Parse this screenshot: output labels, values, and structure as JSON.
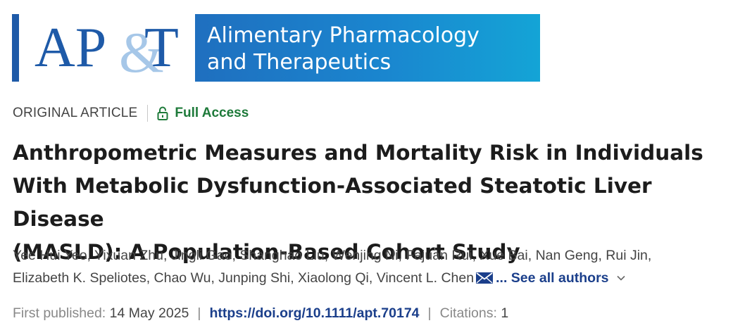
{
  "journal": {
    "abbr_left": "AP",
    "abbr_amp": "&",
    "abbr_right": "T",
    "name_line1": "Alimentary Pharmacology",
    "name_line2": "and Therapeutics",
    "colors": {
      "brand_blue": "#1e5aa8",
      "banner_gradient_start": "#1f6fbf",
      "banner_gradient_end": "#14a4d6",
      "amp_light_blue": "#9dc2e6"
    }
  },
  "meta": {
    "article_type": "ORIGINAL ARTICLE",
    "access_label": "Full Access",
    "access_icon": "lock-open-icon",
    "access_color": "#1e7a3a"
  },
  "title": {
    "line1": "Anthropometric Measures and Mortality Risk in Individuals",
    "line2": "With Metabolic Dysfunction-Associated Steatotic Liver Disease",
    "line3": "(MASLD): A Population-Based Cohort Study"
  },
  "authors": {
    "line1": "Yee Hui Yeo, Yixuan Zhu, Jingli Gao, Shanghao Liu, Wenjing Ni, Fajuan Rui, Xue Bai, Nan Geng, Rui Jin,",
    "line2": "Elizabeth K. Speliotes, Chao Wu, Junping Shi, Xiaolong Qi, Vincent L. Chen",
    "corresponding_icon": "envelope-icon",
    "see_all_label": "... See all authors",
    "see_all_icon": "chevron-down-icon"
  },
  "publication": {
    "first_published_label": "First published:",
    "first_published_date": "14 May 2025",
    "separator": "|",
    "doi": "https://doi.org/10.1111/apt.70174",
    "citations_label": "Citations:",
    "citations_count": "1"
  }
}
